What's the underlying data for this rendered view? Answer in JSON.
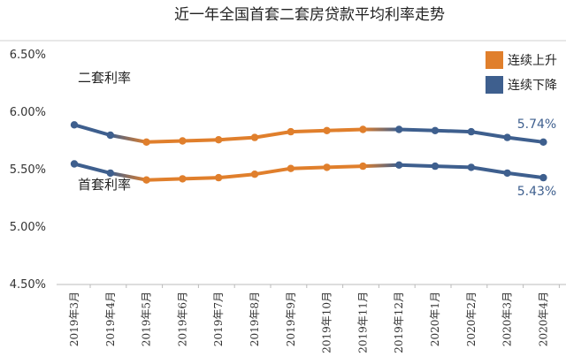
{
  "chart_data": {
    "type": "line",
    "title": "近一年全国首套二套房贷款平均利率走势",
    "categories": [
      "2019年3月",
      "2019年4月",
      "2019年5月",
      "2019年6月",
      "2019年7月",
      "2019年8月",
      "2019年9月",
      "2019年10月",
      "2019年11月",
      "2019年12月",
      "2020年1月",
      "2020年2月",
      "2020年3月",
      "2020年4月"
    ],
    "series": [
      {
        "name": "二套利率",
        "values": [
          5.89,
          5.8,
          5.74,
          5.75,
          5.76,
          5.78,
          5.83,
          5.84,
          5.85,
          5.85,
          5.84,
          5.83,
          5.78,
          5.74
        ]
      },
      {
        "name": "首套利率",
        "values": [
          5.55,
          5.47,
          5.41,
          5.42,
          5.43,
          5.46,
          5.51,
          5.52,
          5.53,
          5.54,
          5.53,
          5.52,
          5.47,
          5.43
        ]
      }
    ],
    "end_labels": [
      "5.74%",
      "5.43%"
    ],
    "yticks": [
      "4.50%",
      "5.00%",
      "5.50%",
      "6.00%",
      "6.50%"
    ],
    "ylim": [
      4.5,
      6.5
    ],
    "grid": false,
    "legend": {
      "placement": "top-right",
      "entries": [
        {
          "label": "连续上升",
          "color": "#E07F2C"
        },
        {
          "label": "连续下降",
          "color": "#3E5F8E"
        }
      ]
    },
    "trend": [
      "down",
      "down",
      "up",
      "up",
      "up",
      "up",
      "up",
      "up",
      "up",
      "down",
      "down",
      "down",
      "down",
      "down"
    ],
    "colors": {
      "up": "#E07F2C",
      "down": "#3E5F8E",
      "axis": "#aaaaaa"
    }
  }
}
